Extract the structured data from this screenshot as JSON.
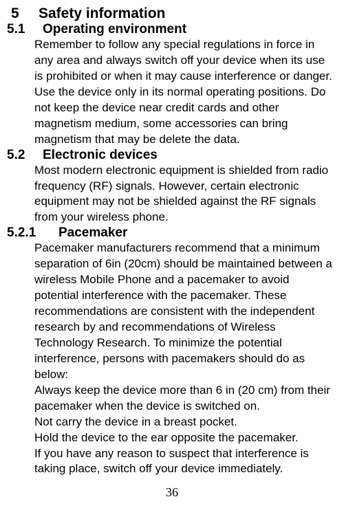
{
  "section5": {
    "num": "5",
    "title": "Safety information"
  },
  "section51": {
    "num": "5.1",
    "title": "Operating environment",
    "body": "Remember to follow any special regulations in force in any area and always switch off your device when its use is prohibited or when it may cause interference or danger. Use the device only in its normal operating positions. Do not keep the device near credit cards and other magnetism medium, some accessories can bring magnetism that may be delete the data."
  },
  "section52": {
    "num": "5.2",
    "title": "Electronic devices",
    "body": "Most modern electronic equipment is shielded from radio frequency (RF) signals. However, certain electronic equipment may not be shielded against the RF signals from your wireless phone."
  },
  "section521": {
    "num": "5.2.1",
    "title": "Pacemaker",
    "body1": "Pacemaker manufacturers recommend that a minimum separation of 6in (20cm) should be maintained between a wireless Mobile Phone and a pacemaker to avoid potential interference with the pacemaker. These recommendations are consistent with the independent research by and recommendations of Wireless Technology Research. To minimize the potential interference, persons with pacemakers should do as below:",
    "body2": "Always keep the device more than 6 in (20 cm) from their pacemaker when the device is switched on.",
    "body3": "Not carry the device in a breast pocket.",
    "body4": "Hold the device to the ear opposite the pacemaker.",
    "body5": "If you have any reason to suspect that interference is taking place, switch off your device immediately."
  },
  "pageNumber": "36"
}
